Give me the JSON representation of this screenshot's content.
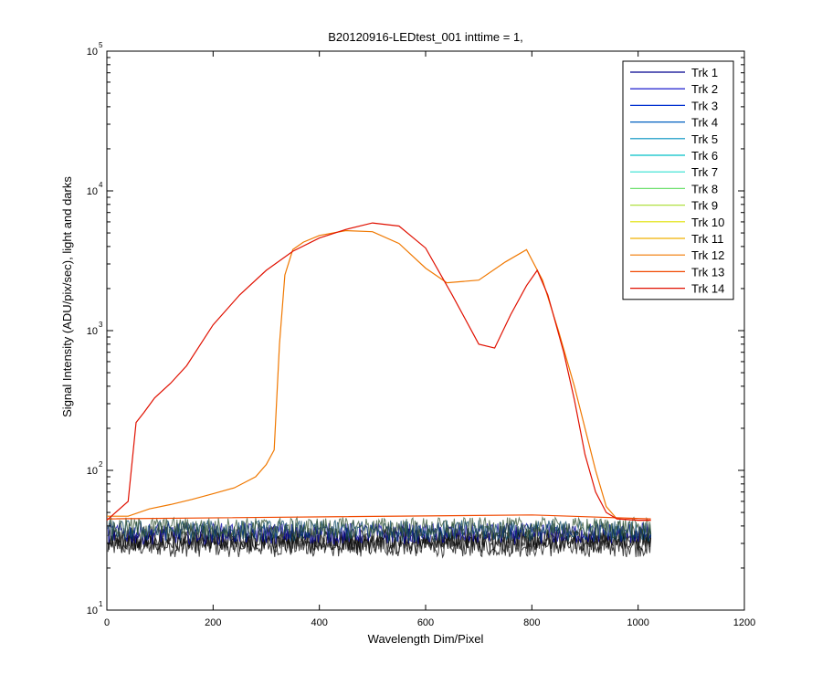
{
  "chart_data": {
    "type": "line",
    "title": "B20120916-LEDtest_001 inttime = 1,",
    "xlabel": "Wavelength Dim/Pixel",
    "ylabel": "Signal Intensity (ADU/pix/sec), light and darks",
    "xlim": [
      0,
      1200
    ],
    "ylim": [
      10,
      100000
    ],
    "yscale": "log",
    "x_ticks": [
      0,
      200,
      400,
      600,
      800,
      1000,
      1200
    ],
    "y_ticks": [
      {
        "base": "10",
        "exp": "1",
        "value": 10
      },
      {
        "base": "10",
        "exp": "2",
        "value": 100
      },
      {
        "base": "10",
        "exp": "3",
        "value": 1000
      },
      {
        "base": "10",
        "exp": "4",
        "value": 10000
      },
      {
        "base": "10",
        "exp": "5",
        "value": 100000
      }
    ],
    "legend_position": "top-right",
    "grid": false,
    "series": [
      {
        "name": "Trk 1",
        "color": "#00008f"
      },
      {
        "name": "Trk 2",
        "color": "#0000c8"
      },
      {
        "name": "Trk 3",
        "color": "#0030d0"
      },
      {
        "name": "Trk 4",
        "color": "#0060c0"
      },
      {
        "name": "Trk 5",
        "color": "#0090c0"
      },
      {
        "name": "Trk 6",
        "color": "#00c0c8"
      },
      {
        "name": "Trk 7",
        "color": "#30e0d0"
      },
      {
        "name": "Trk 8",
        "color": "#70e070"
      },
      {
        "name": "Trk 9",
        "color": "#b0e040"
      },
      {
        "name": "Trk 10",
        "color": "#e0e000"
      },
      {
        "name": "Trk 11",
        "color": "#f0b000"
      },
      {
        "name": "Trk 12",
        "color": "#f07800",
        "x": [
          0,
          40,
          80,
          120,
          160,
          200,
          240,
          280,
          300,
          315,
          325,
          335,
          350,
          370,
          400,
          450,
          500,
          550,
          600,
          640,
          700,
          750,
          790,
          820,
          850,
          880,
          900,
          920,
          940,
          960,
          1000,
          1024
        ],
        "y": [
          47,
          47,
          53,
          57,
          62,
          68,
          75,
          90,
          110,
          140,
          800,
          2500,
          3800,
          4300,
          4800,
          5200,
          5100,
          4200,
          2800,
          2200,
          2300,
          3100,
          3800,
          2300,
          1000,
          400,
          200,
          100,
          55,
          45,
          44,
          44
        ]
      },
      {
        "name": "Trk 13",
        "color": "#f04800",
        "x": [
          0,
          800,
          1024
        ],
        "y": [
          45,
          48,
          45
        ]
      },
      {
        "name": "Trk 14",
        "color": "#e01000",
        "x": [
          0,
          40,
          55,
          70,
          90,
          120,
          150,
          200,
          250,
          300,
          350,
          400,
          450,
          500,
          550,
          600,
          650,
          700,
          730,
          760,
          790,
          810,
          830,
          860,
          880,
          900,
          920,
          940,
          960,
          1000,
          1024
        ],
        "y": [
          44,
          60,
          220,
          260,
          330,
          420,
          560,
          1100,
          1800,
          2700,
          3700,
          4600,
          5300,
          5900,
          5600,
          3900,
          1800,
          800,
          750,
          1300,
          2100,
          2700,
          1800,
          700,
          320,
          130,
          70,
          50,
          45,
          44,
          44
        ]
      }
    ]
  }
}
